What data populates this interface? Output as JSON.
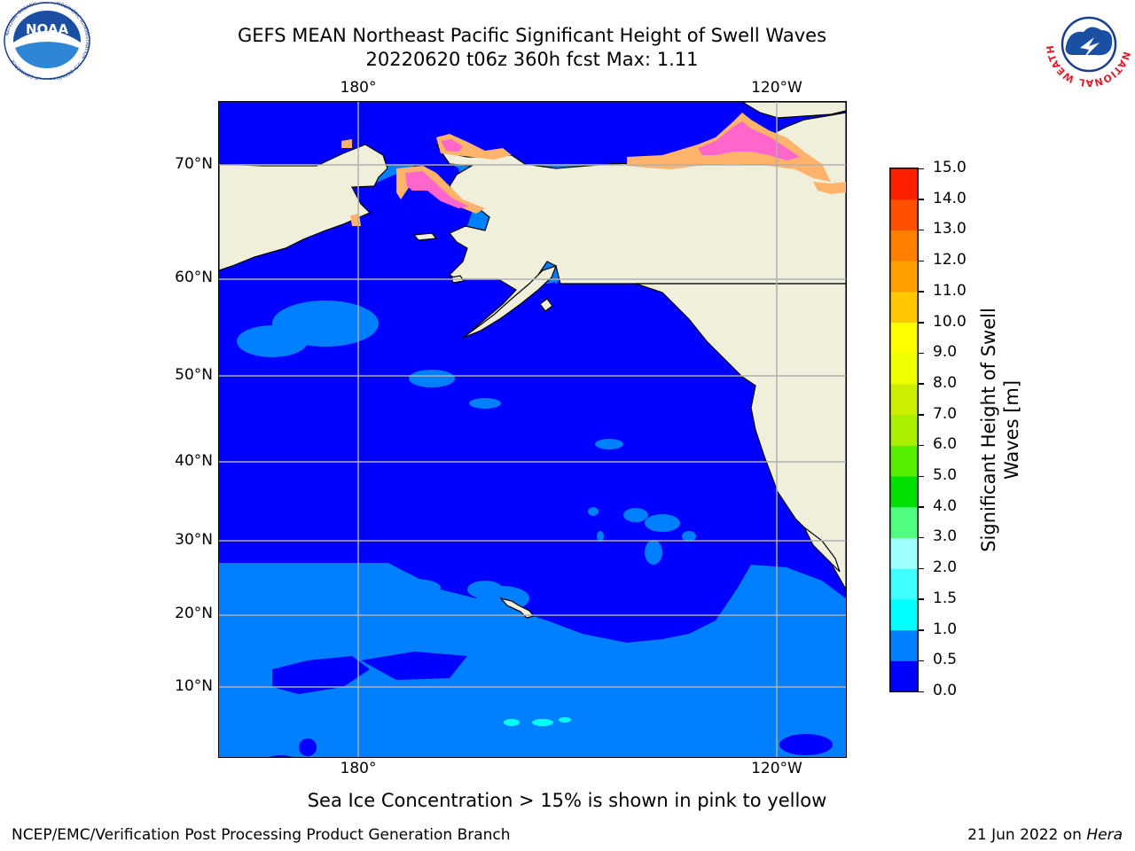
{
  "title": {
    "line1": "GEFS MEAN Northeast Pacific Significant Height of Swell Waves",
    "line2": "20220620 t06z 360h fcst   Max: 1.11"
  },
  "logos": {
    "left_name": "NOAA",
    "left_ring": "NATIONAL OCEANIC AND ATMOSPHERIC ADMINISTRATION · U.S. DEPARTMENT OF COMMERCE",
    "right_ring": "NATIONAL WEATHER SERVICE"
  },
  "map": {
    "lon_labels_top": [
      "180°",
      "120°W"
    ],
    "lon_labels_bottom": [
      "180°",
      "120°W"
    ],
    "lat_labels": [
      "70°N",
      "60°N",
      "50°N",
      "40°N",
      "30°N",
      "20°N",
      "10°N"
    ],
    "colors": {
      "land": "#efefdc",
      "swell_0_05": "#0000ff",
      "swell_05_10": "#0080ff",
      "swell_10_15": "#00ffff",
      "ice_pink": "#ff66cc",
      "ice_orange": "#ffb36b",
      "grid": "#b0b0b0"
    }
  },
  "colorbar": {
    "label_line1": "Significant Height of Swell",
    "label_line2": "Waves [m]",
    "ticks": [
      "0.0",
      "0.5",
      "1.0",
      "1.5",
      "2.0",
      "3.0",
      "4.0",
      "5.0",
      "6.0",
      "7.0",
      "8.0",
      "9.0",
      "10.0",
      "11.0",
      "12.0",
      "13.0",
      "14.0",
      "15.0"
    ],
    "colors": [
      "#0000ff",
      "#0080ff",
      "#00ffff",
      "#40ffff",
      "#a0ffff",
      "#50ff80",
      "#00e000",
      "#55ee00",
      "#aaee00",
      "#ccee00",
      "#eeff00",
      "#ffff00",
      "#ffc800",
      "#ffa000",
      "#ff8000",
      "#ff5000",
      "#ff2000"
    ]
  },
  "footer": {
    "ice_note": "Sea Ice Concentration > 15% is shown in pink to yellow",
    "left": "NCEP/EMC/Verification Post Processing Product Generation Branch",
    "date": "21 Jun 2022 on ",
    "machine": "Hera"
  }
}
